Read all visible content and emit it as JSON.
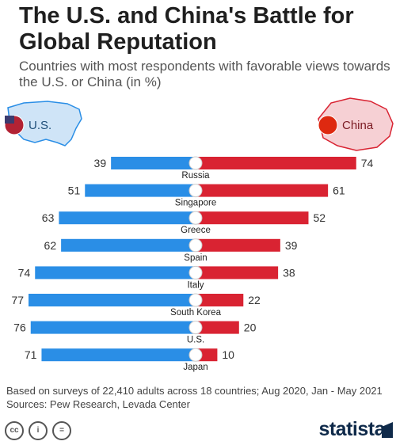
{
  "title": "The U.S. and China's Battle for Global Reputation",
  "subtitle": "Countries with most respondents with favorable views towards the U.S. or China (in %)",
  "colors": {
    "us": "#2a8ee6",
    "china": "#d92332",
    "accent_blue": "#2a8ee6",
    "accent_red": "#d92332"
  },
  "chart_data": {
    "type": "bar",
    "orientation": "diverging-horizontal",
    "categories": [
      "Russia",
      "Singapore",
      "Greece",
      "Spain",
      "Italy",
      "South Korea",
      "U.S.",
      "Japan"
    ],
    "series": [
      {
        "name": "U.S.",
        "side": "left",
        "values": [
          39,
          51,
          63,
          62,
          74,
          77,
          76,
          71
        ]
      },
      {
        "name": "China",
        "side": "right",
        "values": [
          74,
          61,
          52,
          39,
          38,
          22,
          20,
          10
        ]
      }
    ],
    "flags": [
      "russia-flag-icon",
      "singapore-flag-icon",
      "greece-flag-icon",
      "spain-flag-icon",
      "italy-flag-icon",
      "south-korea-flag-icon",
      "us-flag-icon",
      "japan-flag-icon"
    ],
    "units": "%",
    "grid": false
  },
  "footnote": {
    "line1": "Based on surveys of 22,410 adults across 18 countries; Aug 2020, Jan - May 2021",
    "line2": "Sources: Pew Research, Levada Center"
  },
  "license_icons": [
    "cc-icon",
    "person-icon",
    "equals-icon"
  ],
  "license_glyphs": [
    "cc",
    "i",
    "="
  ],
  "brand": "statista"
}
